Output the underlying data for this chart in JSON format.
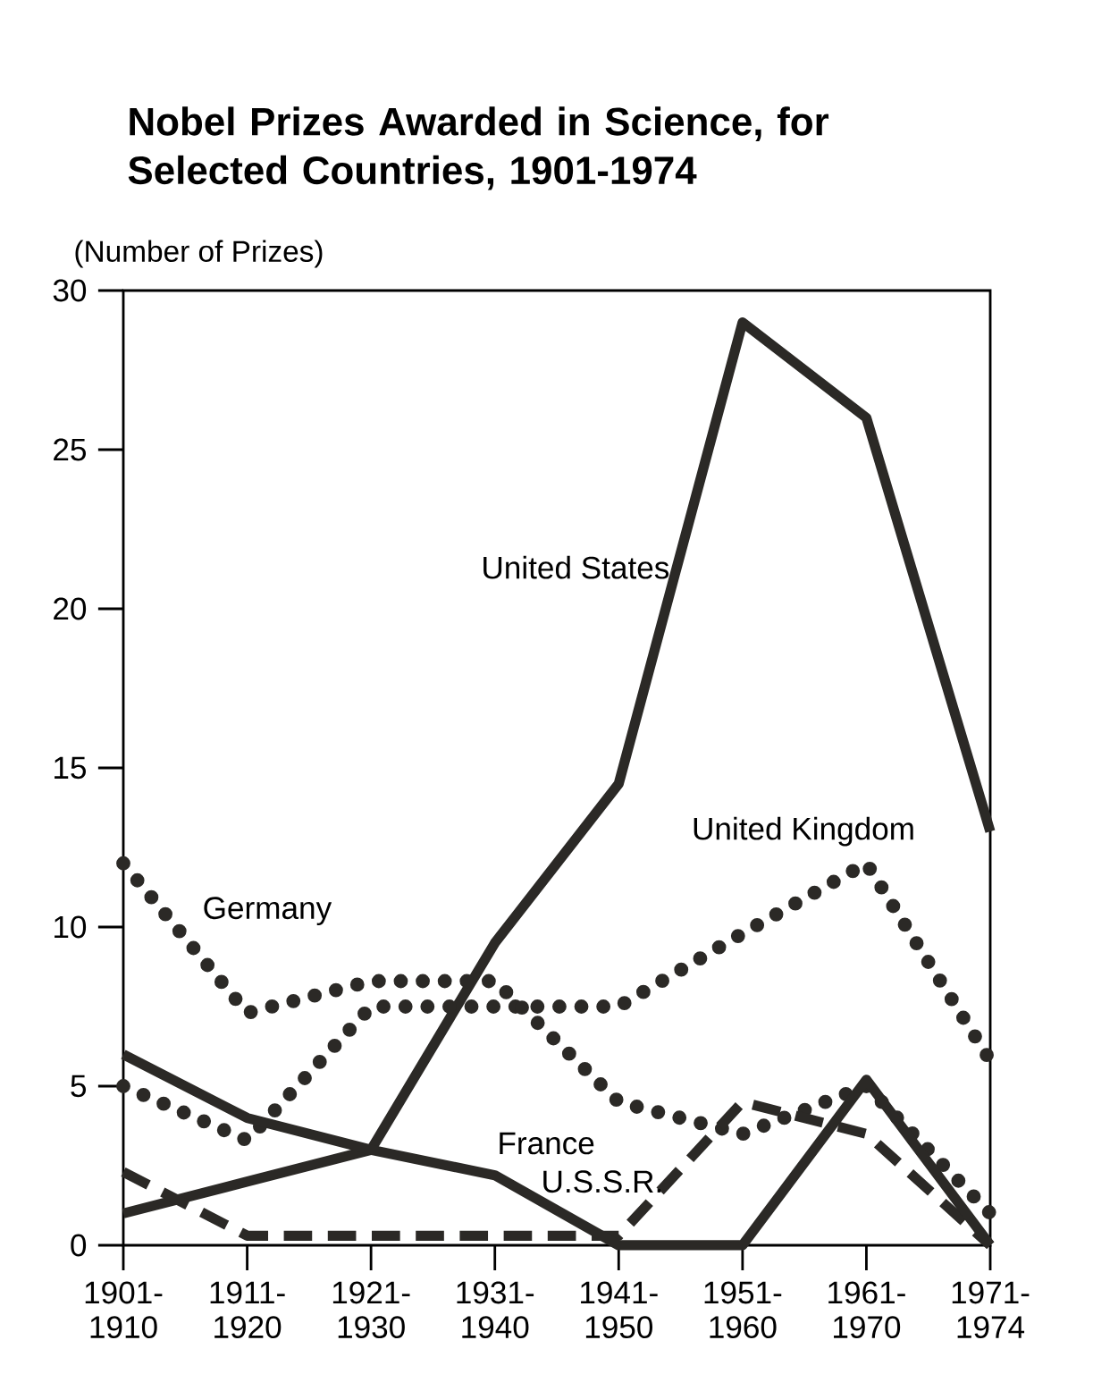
{
  "chart_data": {
    "type": "line",
    "title": "Nobel Prizes Awarded in Science, for Selected Countries, 1901-1974",
    "ylabel": "(Number of Prizes)",
    "categories": [
      "1901- 1910",
      "1911- 1920",
      "1921- 1930",
      "1931- 1940",
      "1941- 1950",
      "1951- 1960",
      "1961- 1970",
      "1971- 1974"
    ],
    "series": [
      {
        "name": "United States",
        "color": "#2b2926",
        "line_style": "solid",
        "values": [
          1,
          2,
          3,
          9.5,
          14.5,
          29,
          26,
          13
        ]
      },
      {
        "name": "United Kingdom",
        "color": "#2b2926",
        "line_style": "dotted",
        "values": [
          5,
          3.3,
          7.5,
          7.5,
          7.5,
          9.8,
          12,
          5.8
        ]
      },
      {
        "name": "Germany",
        "color": "#2b2926",
        "line_style": "dotted",
        "values": [
          12,
          7.3,
          8.3,
          8.3,
          4.5,
          3.5,
          5,
          1
        ]
      },
      {
        "name": "U.S.S.R.",
        "color": "#2b2926",
        "line_style": "dashed",
        "values": [
          2.3,
          0.3,
          0.3,
          0.3,
          0.3,
          4.5,
          3.5,
          0
        ]
      },
      {
        "name": "France",
        "color": "#2b2926",
        "line_style": "solid",
        "values": [
          6,
          4,
          3,
          2.2,
          0,
          0,
          5.2,
          0
        ]
      }
    ],
    "ylim": [
      0,
      30
    ],
    "yticks": [
      0,
      5,
      10,
      15,
      20,
      25,
      30
    ],
    "grid": false
  }
}
